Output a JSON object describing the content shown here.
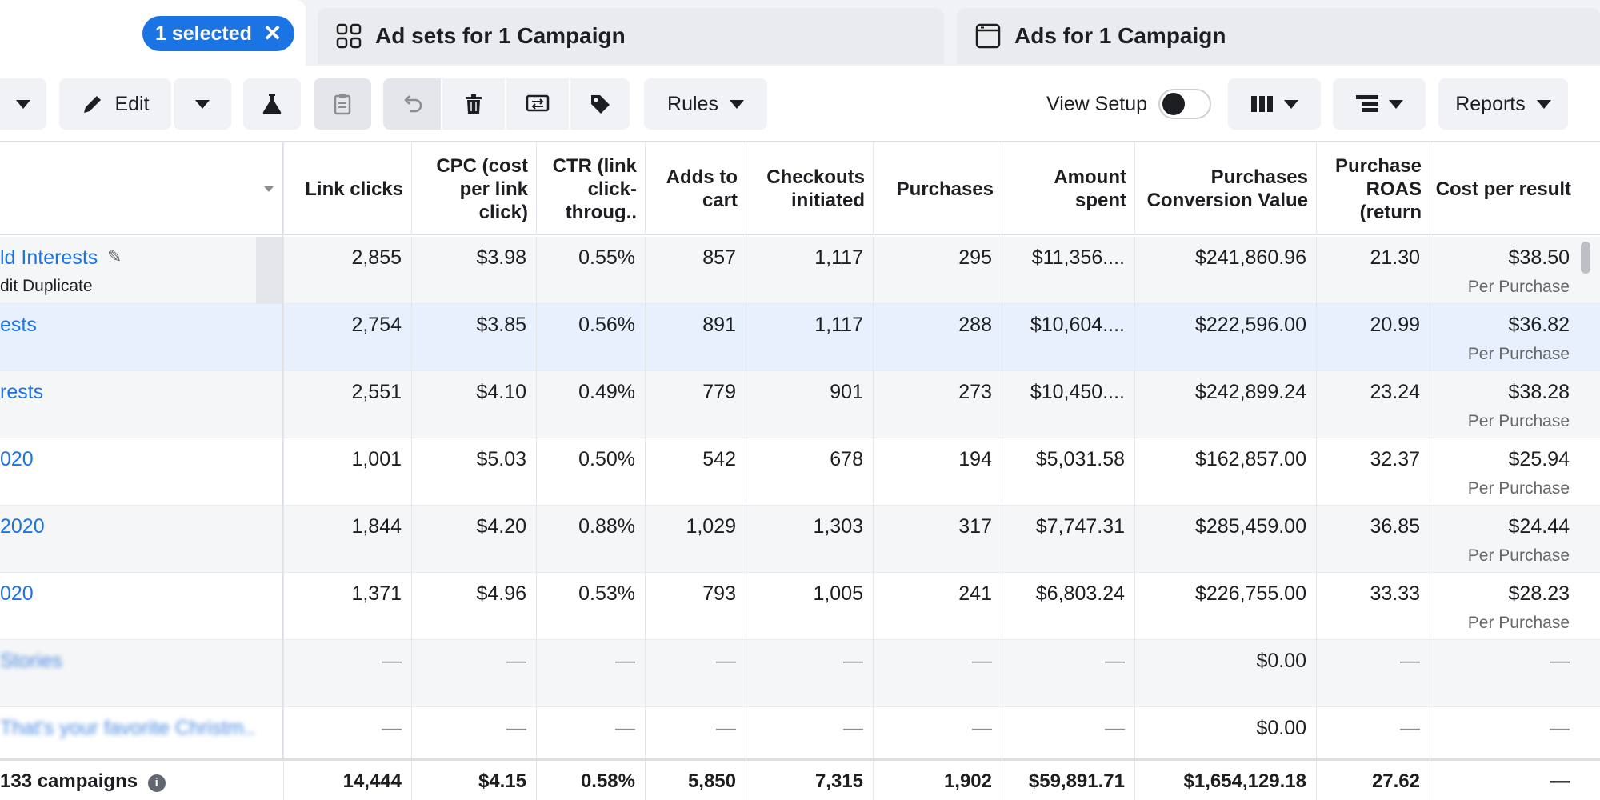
{
  "tabs": {
    "selected_pill": "1 selected",
    "adsets_label": "Ad sets for 1 Campaign",
    "ads_label": "Ads for 1 Campaign"
  },
  "toolbar": {
    "edit_label": "Edit",
    "rules_label": "Rules",
    "view_setup_label": "View Setup",
    "reports_label": "Reports"
  },
  "columns": [
    "Link clicks",
    "CPC (cost per link click)",
    "CTR (link click-throug..",
    "Adds to cart",
    "Checkouts initiated",
    "Purchases",
    "Amount spent",
    "Purchases Conversion Value",
    "Purchase ROAS (return",
    "Cost per result"
  ],
  "rows": [
    {
      "name": "ld Interests",
      "actions": "dit   Duplicate",
      "values": [
        "2,855",
        "$3.98",
        "0.55%",
        "857",
        "1,117",
        "295",
        "$11,356....",
        "$241,860.96",
        "21.30",
        "$38.50"
      ],
      "sub": "Per Purchase"
    },
    {
      "name": "ests",
      "values": [
        "2,754",
        "$3.85",
        "0.56%",
        "891",
        "1,117",
        "288",
        "$10,604....",
        "$222,596.00",
        "20.99",
        "$36.82"
      ],
      "sub": "Per Purchase"
    },
    {
      "name": "rests",
      "values": [
        "2,551",
        "$4.10",
        "0.49%",
        "779",
        "901",
        "273",
        "$10,450....",
        "$242,899.24",
        "23.24",
        "$38.28"
      ],
      "sub": "Per Purchase"
    },
    {
      "name": "020",
      "values": [
        "1,001",
        "$5.03",
        "0.50%",
        "542",
        "678",
        "194",
        "$5,031.58",
        "$162,857.00",
        "32.37",
        "$25.94"
      ],
      "sub": "Per Purchase"
    },
    {
      "name": "2020",
      "values": [
        "1,844",
        "$4.20",
        "0.88%",
        "1,029",
        "1,303",
        "317",
        "$7,747.31",
        "$285,459.00",
        "36.85",
        "$24.44"
      ],
      "sub": "Per Purchase"
    },
    {
      "name": "020",
      "values": [
        "1,371",
        "$4.96",
        "0.53%",
        "793",
        "1,005",
        "241",
        "$6,803.24",
        "$226,755.00",
        "33.33",
        "$28.23"
      ],
      "sub": "Per Purchase"
    },
    {
      "name": "Stories",
      "values": [
        "—",
        "—",
        "—",
        "—",
        "—",
        "—",
        "—",
        "$0.00",
        "—",
        "—"
      ],
      "sub": ""
    },
    {
      "name": "That's your favorite Christm..",
      "values": [
        "—",
        "—",
        "—",
        "—",
        "—",
        "—",
        "—",
        "$0.00",
        "—",
        "—"
      ],
      "sub": ""
    }
  ],
  "totals": {
    "label": "133 campaigns",
    "values": [
      "14,444",
      "$4.15",
      "0.58%",
      "5,850",
      "7,315",
      "1,902",
      "$59,891.71",
      "$1,654,129.18",
      "27.62",
      "—"
    ]
  },
  "colors": {
    "accent": "#1b74e4",
    "highlight_row": "#e7f0fc"
  },
  "icons": [
    "close-icon",
    "adsets-grid-icon",
    "ad-frame-icon",
    "caret-down-icon",
    "pencil-icon",
    "flask-icon",
    "clipboard-icon",
    "undo-icon",
    "trash-icon",
    "swap-icon",
    "tag-icon",
    "columns-icon",
    "breakdown-icon",
    "info-icon"
  ]
}
